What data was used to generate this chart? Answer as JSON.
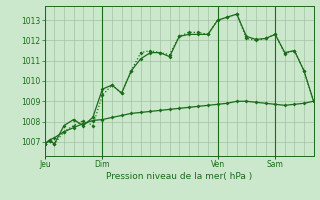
{
  "background_color": "#cce8cc",
  "fig_bg_color": "#cce8cc",
  "grid_color": "#99bb99",
  "line_color_dark": "#1a6b1a",
  "line_color_light": "#3a8b3a",
  "title": "Pression niveau de la mer( hPa )",
  "yticks": [
    1007,
    1008,
    1009,
    1010,
    1011,
    1012,
    1013
  ],
  "ylim": [
    1006.3,
    1013.7
  ],
  "day_labels": [
    "Jeu",
    "Dim",
    "Ven",
    "Sam"
  ],
  "day_positions": [
    0,
    6,
    18,
    24
  ],
  "xlim": [
    0,
    28
  ],
  "line1_x": [
    0,
    0.5,
    1,
    2,
    3,
    4,
    5,
    6,
    7,
    8,
    9,
    10,
    11,
    12,
    13,
    14,
    15,
    16,
    17,
    18,
    19,
    20,
    21,
    22,
    23,
    24,
    25,
    26,
    27,
    28
  ],
  "line1_y": [
    1006.9,
    1007.05,
    1006.9,
    1007.8,
    1008.1,
    1007.8,
    1008.2,
    1009.6,
    1009.8,
    1009.4,
    1010.5,
    1011.1,
    1011.4,
    1011.4,
    1011.2,
    1012.2,
    1012.3,
    1012.3,
    1012.3,
    1013.0,
    1013.15,
    1013.3,
    1012.2,
    1012.05,
    1012.1,
    1012.3,
    1011.4,
    1011.5,
    1010.5,
    1009.0
  ],
  "line2_x": [
    0,
    0.5,
    1,
    2,
    3,
    4,
    5,
    6,
    7,
    8,
    9,
    10,
    11,
    12,
    13,
    14,
    15,
    16,
    17,
    18,
    19,
    20,
    21,
    22,
    23,
    24,
    25,
    26,
    27,
    28
  ],
  "line2_y": [
    1006.9,
    1007.05,
    1006.9,
    1007.5,
    1007.8,
    1008.05,
    1007.8,
    1009.3,
    1009.8,
    1009.4,
    1010.5,
    1011.4,
    1011.5,
    1011.4,
    1011.3,
    1012.2,
    1012.4,
    1012.4,
    1012.3,
    1013.0,
    1013.15,
    1013.3,
    1012.1,
    1012.0,
    1012.1,
    1012.3,
    1011.35,
    1011.5,
    1010.5,
    1009.0
  ],
  "line3_x": [
    0,
    0.5,
    1,
    2,
    3,
    4,
    5,
    6,
    7,
    8,
    9,
    10,
    11,
    12,
    13,
    14,
    15,
    16,
    17,
    18,
    19,
    20,
    21,
    22,
    23,
    24,
    25,
    26,
    27,
    28
  ],
  "line3_y": [
    1006.9,
    1007.1,
    1007.2,
    1007.5,
    1007.7,
    1007.9,
    1008.05,
    1008.1,
    1008.2,
    1008.3,
    1008.4,
    1008.45,
    1008.5,
    1008.55,
    1008.6,
    1008.65,
    1008.7,
    1008.75,
    1008.8,
    1008.85,
    1008.9,
    1009.0,
    1009.0,
    1008.95,
    1008.9,
    1008.85,
    1008.8,
    1008.85,
    1008.9,
    1009.0
  ],
  "marker_size": 2.0,
  "linewidth": 0.9
}
